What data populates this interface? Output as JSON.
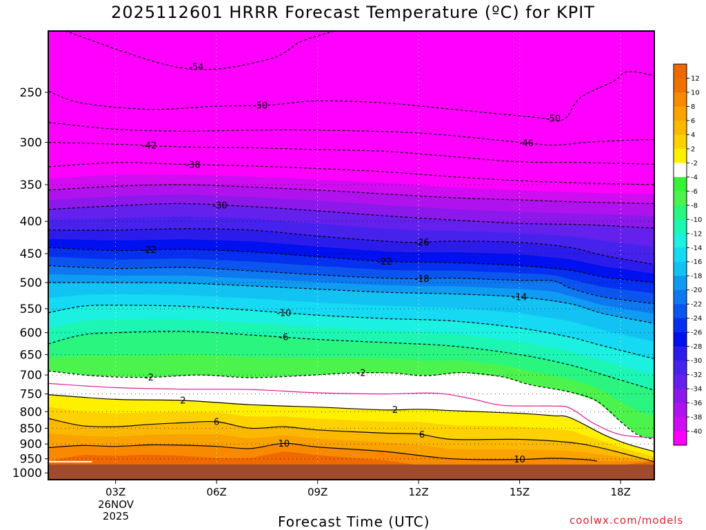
{
  "title": "2025112601 HRRR Forecast Temperature (ºC) for KPIT",
  "xlabel": "Forecast Time (UTC)",
  "credit": "coolwx.com/models",
  "date_label": [
    "26NOV",
    "2025"
  ],
  "chart_data": {
    "type": "heatmap",
    "title": "2025112601 HRRR Forecast Temperature (ºC) for KPIT",
    "xlabel": "Forecast Time (UTC)",
    "ylabel": "",
    "x_range_hours": [
      1,
      19
    ],
    "y_range_hpa": [
      200,
      1025
    ],
    "y_scale": "log-pressure (inverted)",
    "x_ticks": [
      {
        "hour": 3,
        "label": "03Z"
      },
      {
        "hour": 6,
        "label": "06Z"
      },
      {
        "hour": 9,
        "label": "09Z"
      },
      {
        "hour": 12,
        "label": "12Z"
      },
      {
        "hour": 15,
        "label": "15Z"
      },
      {
        "hour": 18,
        "label": "18Z"
      }
    ],
    "y_ticks": [
      250,
      300,
      350,
      400,
      450,
      500,
      550,
      600,
      650,
      700,
      750,
      800,
      850,
      900,
      950,
      1000
    ],
    "dotted_pressure_levels": [
      350,
      400,
      450,
      500,
      550,
      600,
      650,
      700,
      750,
      800,
      850,
      900,
      950
    ],
    "colorbar": {
      "position": "right",
      "labels": [
        "12",
        "10",
        "8",
        "6",
        "4",
        "2",
        "-2",
        "-4",
        "-6",
        "-8",
        "-10",
        "-12",
        "-14",
        "-16",
        "-18",
        "-20",
        "-22",
        "-24",
        "-26",
        "-28",
        "-30",
        "-32",
        "-34",
        "-36",
        "-38",
        "-40"
      ],
      "colors": [
        "#f07000",
        "#f78a00",
        "#faa200",
        "#fbb800",
        "#fdd200",
        "#fff000",
        "#ffffff",
        "#37f337",
        "#4cf34c",
        "#29f57f",
        "#1df5b3",
        "#1cf0e0",
        "#16d9f3",
        "#12c2f3",
        "#0f9bf1",
        "#0d78f0",
        "#0b55ee",
        "#0630f0",
        "#0010ee",
        "#2c1cec",
        "#4622ec",
        "#6420ec",
        "#8c18ec",
        "#b012ee",
        "#d00cf0",
        "#ff00ff"
      ],
      "top_color": "#f06800",
      "ground_color": "#a04c2c"
    },
    "ground_pressure_hpa": 970,
    "surface_marker_hpa": 960,
    "contours": [
      {
        "value": -54,
        "label": "-54",
        "points": [
          [
            1.5,
            200
          ],
          [
            5.0,
            229
          ],
          [
            7.5,
            222
          ],
          [
            8.5,
            208
          ],
          [
            9.5,
            200
          ]
        ]
      },
      {
        "value": -50,
        "label": "-50",
        "points": [
          [
            1,
            249
          ],
          [
            2,
            260
          ],
          [
            4,
            266
          ],
          [
            6,
            263
          ],
          [
            7.5,
            262
          ],
          [
            9,
            258
          ],
          [
            11,
            260
          ],
          [
            13,
            266
          ],
          [
            15.5,
            274
          ],
          [
            16.3,
            276
          ],
          [
            16.8,
            255
          ],
          [
            17.8,
            240
          ],
          [
            18.2,
            232
          ],
          [
            19,
            235
          ]
        ]
      },
      {
        "value": -46,
        "label": "-46",
        "points": [
          [
            1,
            279
          ],
          [
            3,
            286
          ],
          [
            5,
            288
          ],
          [
            7,
            287
          ],
          [
            9,
            287
          ],
          [
            12,
            290
          ],
          [
            15,
            300
          ],
          [
            16,
            303
          ],
          [
            17,
            300
          ],
          [
            18,
            298
          ],
          [
            19,
            297
          ]
        ]
      },
      {
        "value": -42,
        "label": "-42",
        "points": [
          [
            1,
            300
          ],
          [
            3,
            302
          ],
          [
            5,
            305
          ],
          [
            7,
            306
          ],
          [
            9,
            308
          ],
          [
            11,
            310
          ],
          [
            13,
            316
          ],
          [
            15,
            322
          ],
          [
            17,
            323
          ],
          [
            19,
            325
          ]
        ]
      },
      {
        "value": -38,
        "label": "-38",
        "points": [
          [
            1,
            328
          ],
          [
            3,
            323
          ],
          [
            5,
            325
          ],
          [
            7,
            327
          ],
          [
            9,
            330
          ],
          [
            11,
            334
          ],
          [
            13,
            340
          ],
          [
            15,
            345
          ],
          [
            17,
            348
          ],
          [
            19,
            350
          ]
        ]
      },
      {
        "value": -34,
        "label": "",
        "points": [
          [
            1,
            357
          ],
          [
            3,
            352
          ],
          [
            5,
            350
          ],
          [
            7,
            353
          ],
          [
            9,
            357
          ],
          [
            11,
            362
          ],
          [
            13,
            367
          ],
          [
            15,
            370
          ],
          [
            17,
            373
          ],
          [
            19,
            375
          ]
        ]
      },
      {
        "value": -30,
        "label": "-30",
        "points": [
          [
            1,
            383
          ],
          [
            3,
            378
          ],
          [
            5,
            375
          ],
          [
            7,
            379
          ],
          [
            9,
            385
          ],
          [
            11,
            392
          ],
          [
            13,
            398
          ],
          [
            15,
            403
          ],
          [
            17,
            405
          ],
          [
            19,
            410
          ]
        ]
      },
      {
        "value": -26,
        "label": "-26",
        "points": [
          [
            1,
            413
          ],
          [
            3,
            413
          ],
          [
            5,
            411
          ],
          [
            7,
            413
          ],
          [
            9,
            422
          ],
          [
            11,
            430
          ],
          [
            12,
            432
          ],
          [
            13,
            430
          ],
          [
            15,
            432
          ],
          [
            16.5,
            440
          ],
          [
            17.5,
            453
          ],
          [
            19,
            468
          ]
        ]
      },
      {
        "value": -22,
        "label": "-22",
        "points": [
          [
            1,
            440
          ],
          [
            3,
            445
          ],
          [
            5,
            443
          ],
          [
            7,
            447
          ],
          [
            9,
            455
          ],
          [
            11,
            463
          ],
          [
            13,
            465
          ],
          [
            15,
            470
          ],
          [
            16.5,
            478
          ],
          [
            17.5,
            490
          ],
          [
            19,
            500
          ]
        ]
      },
      {
        "value": -18,
        "label": "-18",
        "points": [
          [
            1,
            470
          ],
          [
            3,
            475
          ],
          [
            5,
            473
          ],
          [
            7,
            479
          ],
          [
            9,
            486
          ],
          [
            11,
            492
          ],
          [
            12,
            493
          ],
          [
            13,
            492
          ],
          [
            15,
            496
          ],
          [
            16,
            497
          ],
          [
            16.5,
            510
          ],
          [
            17.5,
            527
          ],
          [
            19,
            540
          ]
        ]
      },
      {
        "value": -14,
        "label": "-14",
        "points": [
          [
            1,
            500
          ],
          [
            3,
            500
          ],
          [
            5,
            501
          ],
          [
            7,
            506
          ],
          [
            9,
            512
          ],
          [
            11,
            518
          ],
          [
            13,
            521
          ],
          [
            15,
            527
          ],
          [
            16.5,
            540
          ],
          [
            17.5,
            560
          ],
          [
            19,
            580
          ]
        ]
      },
      {
        "value": -10,
        "label": "-10",
        "points": [
          [
            1,
            558
          ],
          [
            2,
            545
          ],
          [
            3,
            543
          ],
          [
            5,
            545
          ],
          [
            7,
            553
          ],
          [
            9,
            563
          ],
          [
            11,
            570
          ],
          [
            13,
            575
          ],
          [
            15,
            590
          ],
          [
            16.5,
            610
          ],
          [
            17.5,
            630
          ],
          [
            19,
            660
          ]
        ]
      },
      {
        "value": -6,
        "label": "-6",
        "points": [
          [
            1,
            625
          ],
          [
            2,
            605
          ],
          [
            3,
            600
          ],
          [
            5,
            597
          ],
          [
            7,
            605
          ],
          [
            9,
            615
          ],
          [
            11,
            622
          ],
          [
            13,
            630
          ],
          [
            15,
            650
          ],
          [
            16.5,
            675
          ],
          [
            17.5,
            700
          ],
          [
            19,
            740
          ]
        ]
      },
      {
        "value": -2,
        "label": "-2",
        "points": [
          [
            1,
            690
          ],
          [
            2.5,
            703
          ],
          [
            4,
            706
          ],
          [
            5.5,
            700
          ],
          [
            7,
            707
          ],
          [
            8.5,
            702
          ],
          [
            10,
            695
          ],
          [
            11.2,
            695
          ],
          [
            12.2,
            702
          ],
          [
            13.3,
            694
          ],
          [
            14.5,
            705
          ],
          [
            15.3,
            725
          ],
          [
            16.5,
            745
          ],
          [
            17.3,
            770
          ],
          [
            18,
            830
          ],
          [
            18.5,
            870
          ],
          [
            19,
            885
          ]
        ]
      },
      {
        "value": 0,
        "label": "",
        "color": "magenta",
        "points": [
          [
            1,
            722
          ],
          [
            3,
            733
          ],
          [
            5,
            737
          ],
          [
            7,
            738
          ],
          [
            9,
            747
          ],
          [
            11,
            750
          ],
          [
            12.5,
            748
          ],
          [
            13.5,
            762
          ],
          [
            14.5,
            782
          ],
          [
            16,
            784
          ],
          [
            16.5,
            790
          ],
          [
            17.2,
            835
          ],
          [
            18,
            870
          ],
          [
            19,
            880
          ]
        ]
      },
      {
        "value": 2,
        "label": "2",
        "color": "black",
        "points": [
          [
            1,
            752
          ],
          [
            3,
            765
          ],
          [
            5,
            768
          ],
          [
            7,
            780
          ],
          [
            9,
            787
          ],
          [
            11,
            795
          ],
          [
            12,
            793
          ],
          [
            13,
            797
          ],
          [
            15,
            805
          ],
          [
            16,
            812
          ],
          [
            16.5,
            818
          ],
          [
            17.5,
            870
          ],
          [
            18.2,
            900
          ],
          [
            19,
            925
          ]
        ]
      },
      {
        "value": 6,
        "label": "6",
        "color": "black",
        "points": [
          [
            1,
            820
          ],
          [
            2,
            842
          ],
          [
            3,
            845
          ],
          [
            4,
            838
          ],
          [
            5,
            833
          ],
          [
            6,
            830
          ],
          [
            7,
            850
          ],
          [
            8,
            845
          ],
          [
            9,
            855
          ],
          [
            11,
            865
          ],
          [
            12,
            868
          ],
          [
            13,
            885
          ],
          [
            15,
            885
          ],
          [
            16.5,
            895
          ],
          [
            17.5,
            915
          ],
          [
            19,
            960
          ]
        ]
      },
      {
        "value": 10,
        "label": "10",
        "color": "black",
        "points": [
          [
            1,
            912
          ],
          [
            2,
            905
          ],
          [
            3,
            908
          ],
          [
            4,
            903
          ],
          [
            5,
            904
          ],
          [
            6,
            908
          ],
          [
            7,
            915
          ],
          [
            8,
            898
          ],
          [
            9,
            910
          ],
          [
            11,
            925
          ],
          [
            13,
            950
          ],
          [
            15,
            952
          ],
          [
            16,
            948
          ],
          [
            17,
            953
          ],
          [
            17.3,
            958
          ]
        ]
      }
    ]
  }
}
